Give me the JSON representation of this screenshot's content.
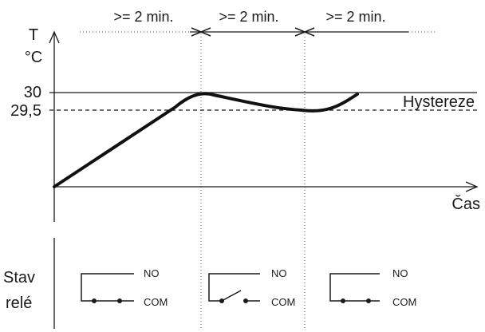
{
  "diagram": {
    "intervals": [
      ">= 2 min.",
      ">= 2 min.",
      ">= 2 min."
    ],
    "y_axis": {
      "symbol": "T",
      "unit": "°C",
      "tick_high": "30",
      "tick_low": "29,5"
    },
    "x_axis": {
      "label": "Čas"
    },
    "hysteresis_label": "Hystereze",
    "relay": {
      "label_line1": "Stav",
      "label_line2": "relé",
      "states": [
        {
          "no": "NO",
          "com": "COM",
          "closed": true
        },
        {
          "no": "NO",
          "com": "COM",
          "closed": false
        },
        {
          "no": "NO",
          "com": "COM",
          "closed": true
        }
      ]
    }
  }
}
